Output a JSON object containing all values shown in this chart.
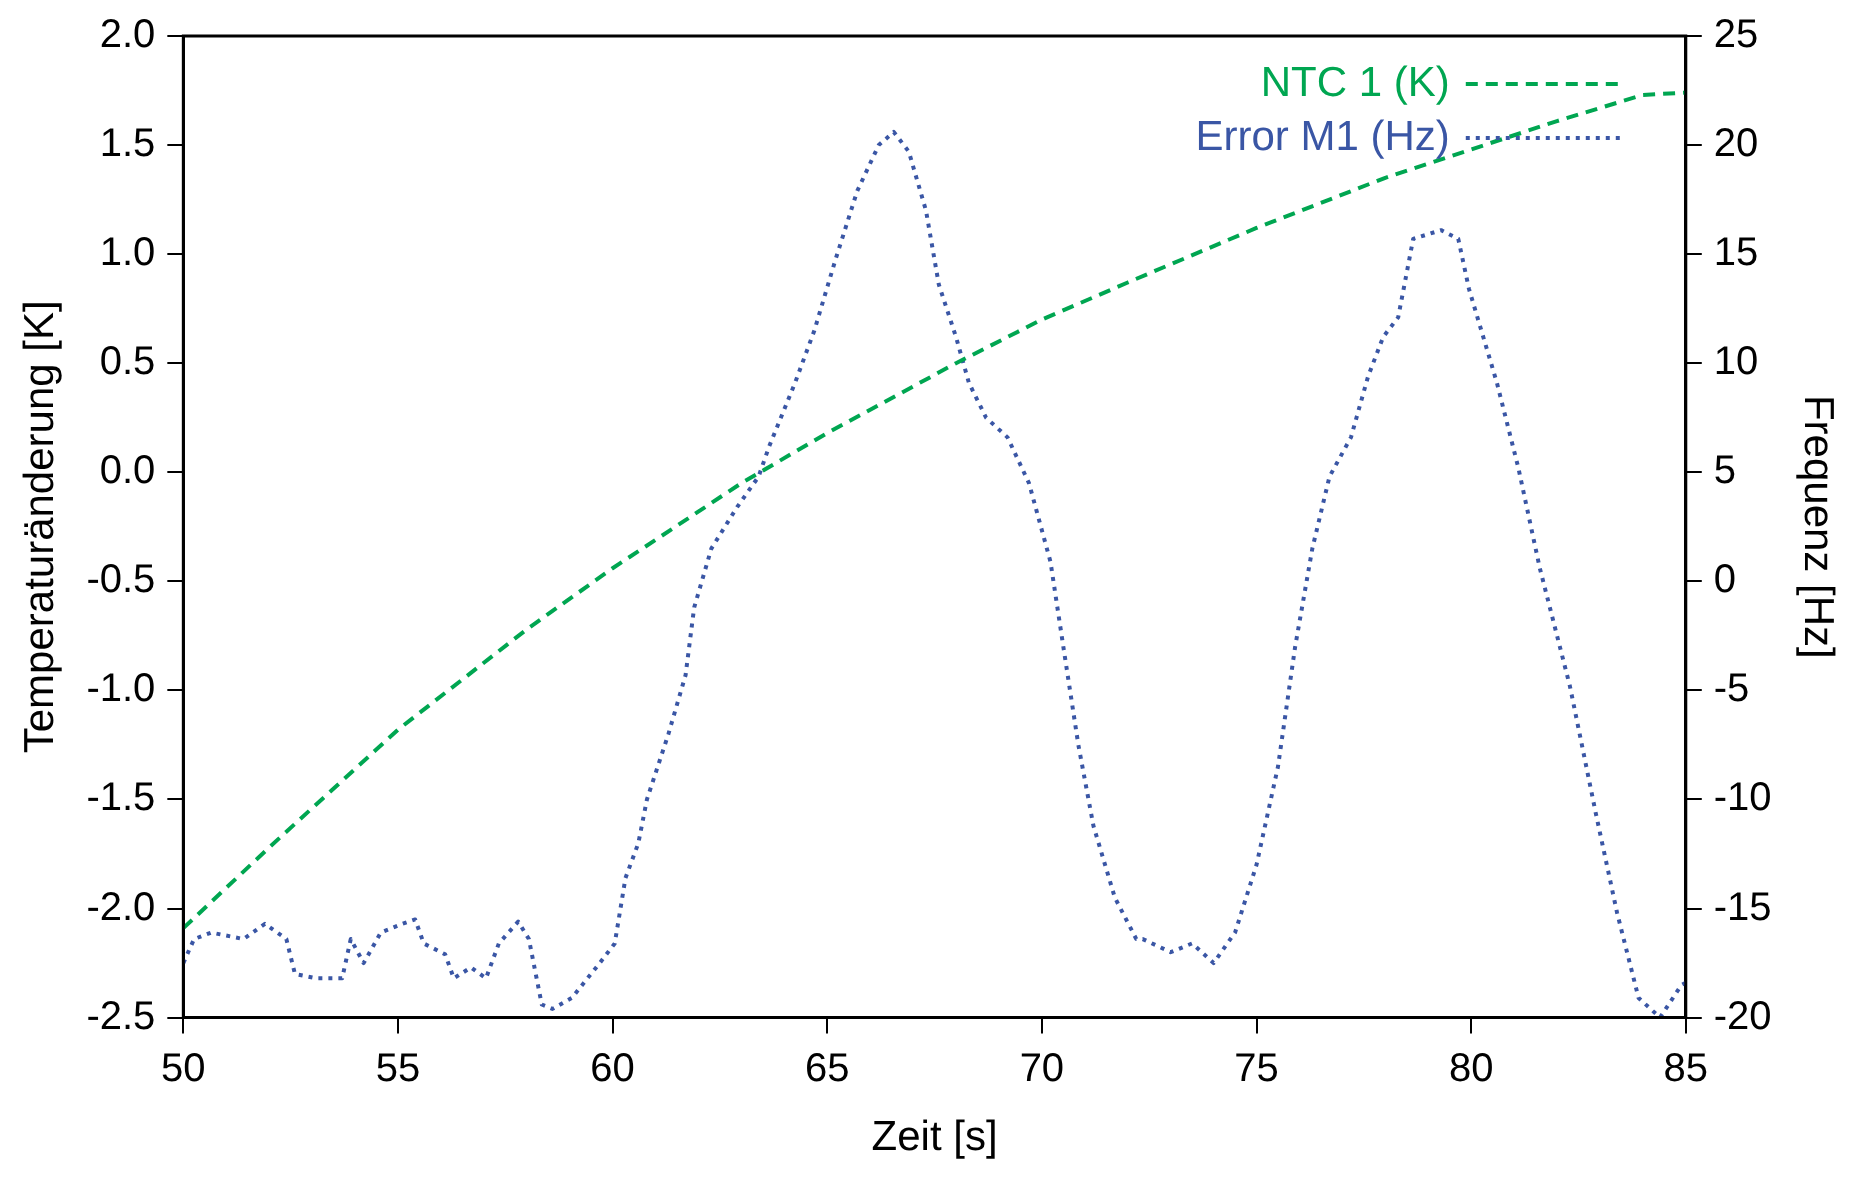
{
  "chart_data": {
    "type": "line",
    "xlabel": "Zeit [s]",
    "ylabel": "Temperaturänderung [K]",
    "y2label": "Frequenz [Hz]",
    "xlim": [
      50,
      85
    ],
    "xticks": [
      50,
      55,
      60,
      65,
      70,
      75,
      80,
      85
    ],
    "ylim": [
      -2.5,
      2.0
    ],
    "yticks": [
      -2.5,
      {
        "value": -2,
        "label": "-2.0"
      },
      -1.5,
      {
        "value": -1,
        "label": "-1.0"
      },
      -0.5,
      {
        "value": 0,
        "label": "0.0"
      },
      0.5,
      {
        "value": 1,
        "label": "1.0"
      },
      1.5,
      {
        "value": 2,
        "label": "2.0"
      }
    ],
    "y2lim": [
      -20,
      25
    ],
    "y2ticks": [
      -20,
      -15,
      -10,
      -5,
      0,
      5,
      10,
      15,
      20,
      25
    ],
    "grid": false,
    "legend": "top right",
    "marker": "none",
    "series": [
      {
        "name": "NTC 1 (K)",
        "color": "#00a651",
        "line_style": "dashed",
        "x": [
          50,
          52,
          55,
          58,
          60,
          63,
          65,
          68,
          70,
          72,
          75,
          78,
          80,
          82,
          84,
          85
        ],
        "values": [
          -2.09,
          -1.72,
          -1.18,
          -0.72,
          -0.44,
          -0.05,
          0.18,
          0.5,
          0.7,
          0.87,
          1.12,
          1.35,
          1.48,
          1.61,
          1.73,
          1.74
        ]
      },
      {
        "name": "Error M1 (Hz)",
        "color": "#3a56a5",
        "line_style": "dotted",
        "axis": "y2",
        "x": [
          50,
          50.25,
          50.65,
          51.4,
          51.9,
          52.4,
          52.6,
          53.1,
          53.7,
          53.9,
          54.2,
          54.6,
          55.1,
          55.4,
          55.6,
          56.1,
          56.3,
          56.7,
          57.05,
          57.35,
          57.8,
          58.05,
          58.35,
          58.6,
          59.05,
          59.7,
          60.05,
          60.3,
          60.6,
          60.8,
          61.3,
          61.7,
          61.9,
          62.3,
          62.9,
          63.4,
          63.65,
          64.25,
          64.7,
          65.2,
          65.7,
          66.2,
          66.55,
          66.9,
          67.3,
          67.6,
          68,
          68.3,
          68.7,
          69.2,
          69.7,
          70.2,
          70.5,
          70.85,
          71.2,
          71.7,
          72.2,
          72.35,
          73,
          73.5,
          74,
          74.5,
          75,
          75.5,
          75.9,
          76.3,
          76.7,
          77.2,
          77.6,
          77.95,
          78.3,
          78.65,
          79.3,
          79.7,
          79.95,
          80.6,
          81.1,
          81.6,
          82.3,
          82.9,
          83.4,
          83.9,
          84.4,
          84.9,
          85
        ],
        "values": [
          -17.5,
          -16.4,
          -16.1,
          -16.4,
          -15.7,
          -16.4,
          -18,
          -18.2,
          -18.2,
          -16.4,
          -17.5,
          -16.1,
          -15.7,
          -15.5,
          -16.6,
          -17.1,
          -18.2,
          -17.7,
          -18.2,
          -16.6,
          -15.6,
          -16.4,
          -19.4,
          -19.6,
          -19.1,
          -17.5,
          -16.6,
          -13.6,
          -12,
          -10,
          -7,
          -4.3,
          -1.2,
          1.5,
          3.4,
          4.8,
          6.2,
          9.1,
          11.5,
          14.8,
          17.9,
          20,
          20.6,
          19.7,
          17,
          13.6,
          11.2,
          9.1,
          7.5,
          6.6,
          4.5,
          0.9,
          -3,
          -7.5,
          -11.2,
          -14.5,
          -16.4,
          -16.4,
          -17,
          -16.6,
          -17.5,
          -16.1,
          -13,
          -8.5,
          -3,
          1.5,
          4.8,
          6.6,
          9.4,
          11.2,
          12.1,
          15.7,
          16.1,
          15.7,
          13.4,
          9.1,
          5.2,
          0.6,
          -4.8,
          -10.6,
          -15.2,
          -19.1,
          -20,
          -18.5,
          -18.4
        ]
      }
    ]
  }
}
